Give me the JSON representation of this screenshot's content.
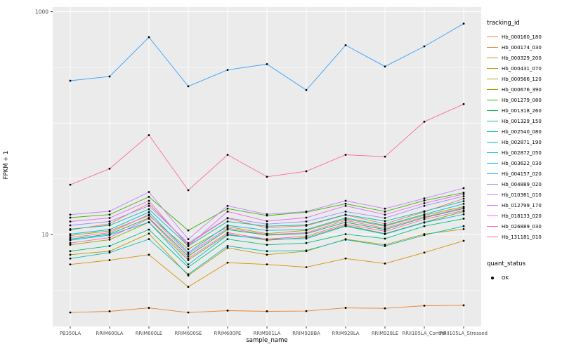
{
  "figure": {
    "ylabel": "FPKM + 1",
    "xlabel": "sample_name",
    "legend_title_tracking": "tracking_id",
    "legend_title_quant": "quant_status",
    "quant_status_value": "OK"
  },
  "chart_data": {
    "type": "line",
    "x_type": "categorical",
    "title": "",
    "xlabel": "sample_name",
    "ylabel": "FPKM + 1",
    "y_scale": "log10",
    "ylim": [
      1.5,
      1100
    ],
    "y_ticks_labeled": [
      1000,
      10
    ],
    "y_gridlines_major": [
      10,
      100,
      1000
    ],
    "y_gridlines_minor": [
      3.16,
      31.6,
      316
    ],
    "grid": true,
    "legend_position": "right",
    "panel_bg": "#EBEBEB",
    "point_color": "#000000",
    "categories": [
      "PB350LA",
      "RRIM600LA",
      "RRIM600LE",
      "RRIM600SE",
      "RRIM600PE",
      "RRIM901LA",
      "RRIM928BA",
      "RRIM928LA",
      "RRIM928LE",
      "RRII105LA_Control",
      "RRII105LA_Stressed"
    ],
    "series": [
      {
        "name": "Hb_000160_180",
        "color": "#F8766D",
        "values": [
          11,
          12.5,
          19,
          8.2,
          14,
          11.5,
          12,
          15,
          12.5,
          16,
          21
        ]
      },
      {
        "name": "Hb_000174_030",
        "color": "#EA8331",
        "values": [
          2.0,
          2.05,
          2.2,
          2.0,
          2.08,
          2.05,
          2.06,
          2.2,
          2.18,
          2.3,
          2.32
        ]
      },
      {
        "name": "Hb_000329_200",
        "color": "#D89000",
        "values": [
          5.4,
          5.9,
          6.6,
          3.4,
          5.6,
          5.4,
          5.1,
          6.1,
          5.5,
          6.9,
          8.8
        ]
      },
      {
        "name": "Hb_000431_070",
        "color": "#C09B00",
        "values": [
          6.6,
          7.1,
          10.2,
          4.3,
          7.6,
          6.6,
          7.1,
          9.1,
          8.1,
          10.1,
          11.2
        ]
      },
      {
        "name": "Hb_000566_120",
        "color": "#A3A500",
        "values": [
          9.8,
          10.8,
          14.8,
          7.4,
          11.8,
          10.2,
          10.9,
          13.8,
          11.9,
          14.9,
          17.8
        ]
      },
      {
        "name": "Hb_000676_390",
        "color": "#7CAE00",
        "values": [
          8.1,
          9.0,
          12.9,
          5.9,
          10.1,
          8.9,
          9.4,
          12.1,
          10.2,
          12.9,
          16.1
        ]
      },
      {
        "name": "Hb_001279_080",
        "color": "#39B600",
        "values": [
          14.2,
          15.1,
          21.8,
          10.9,
          17.1,
          14.8,
          15.9,
          18.9,
          16.1,
          20.2,
          23.8
        ]
      },
      {
        "name": "Hb_001318_260",
        "color": "#00BB4E",
        "values": [
          9.1,
          10.1,
          14.1,
          6.4,
          11.1,
          9.9,
          10.2,
          12.9,
          11.1,
          14.2,
          17.1
        ]
      },
      {
        "name": "Hb_001329_150",
        "color": "#00BF7D",
        "values": [
          7.1,
          7.9,
          11.1,
          5.1,
          9.1,
          8.1,
          8.4,
          10.1,
          9.2,
          11.9,
          13.9
        ]
      },
      {
        "name": "Hb_002540_080",
        "color": "#00C1A3",
        "values": [
          11.2,
          12.1,
          16.9,
          7.9,
          13.1,
          11.9,
          12.2,
          15.1,
          13.2,
          16.2,
          19.9
        ]
      },
      {
        "name": "Hb_002871_190",
        "color": "#00BFC4",
        "values": [
          6.1,
          6.9,
          9.1,
          4.4,
          7.9,
          7.1,
          7.2,
          9.0,
          7.9,
          9.9,
          11.9
        ]
      },
      {
        "name": "Hb_002872_050",
        "color": "#00BAE0",
        "values": [
          10.1,
          11.1,
          15.9,
          6.9,
          12.1,
          10.9,
          11.1,
          14.1,
          12.1,
          15.2,
          18.9
        ]
      },
      {
        "name": "Hb_003622_030",
        "color": "#00B0F6",
        "values": [
          8.9,
          9.9,
          12.9,
          5.4,
          9.9,
          9.1,
          9.2,
          11.9,
          10.1,
          12.8,
          15.2
        ]
      },
      {
        "name": "Hb_004157_020",
        "color": "#35A2FF",
        "values": [
          240,
          262,
          590,
          214,
          300,
          338,
          198,
          500,
          322,
          488,
          780
        ]
      },
      {
        "name": "Hb_004889_020",
        "color": "#9590FF",
        "values": [
          12.1,
          13.1,
          18.1,
          8.4,
          14.1,
          12.4,
          13.1,
          16.1,
          14.1,
          18.1,
          22.1
        ]
      },
      {
        "name": "Hb_010361_010",
        "color": "#C77CFF",
        "values": [
          15.1,
          16.2,
          24.1,
          9.1,
          18.1,
          15.2,
          16.1,
          20.1,
          17.1,
          21.1,
          26.1
        ]
      },
      {
        "name": "Hb_012799_170",
        "color": "#E76BF3",
        "values": [
          13.1,
          14.1,
          20.1,
          7.9,
          16.1,
          13.2,
          14.2,
          18.1,
          15.1,
          19.1,
          23.1
        ]
      },
      {
        "name": "Hb_018133_020",
        "color": "#FA62DB",
        "values": [
          9.4,
          10.4,
          15.1,
          6.7,
          11.4,
          10.0,
          10.4,
          13.4,
          11.4,
          14.4,
          17.4
        ]
      },
      {
        "name": "Hb_026889_030",
        "color": "#FF62BC",
        "values": [
          8.4,
          9.4,
          13.9,
          6.1,
          10.4,
          9.1,
          9.7,
          12.4,
          10.7,
          13.7,
          16.4
        ]
      },
      {
        "name": "Hb_131181_010",
        "color": "#FF6A98",
        "values": [
          28,
          39,
          78,
          25,
          52,
          33,
          37,
          52,
          50,
          103,
          148
        ]
      }
    ]
  }
}
